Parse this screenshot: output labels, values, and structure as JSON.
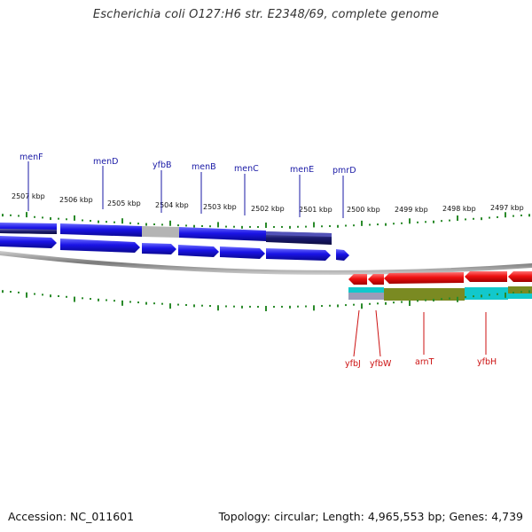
{
  "title": "Escherichia coli O127:H6 str. E2348/69, complete genome",
  "footer": {
    "accession": "Accession: NC_011601",
    "summary": "Topology: circular; Length: 4,965,553 bp; Genes: 4,739"
  },
  "scale_labels": [
    "2507 kbp",
    "2506 kbp",
    "2505 kbp",
    "2504 kbp",
    "2503 kbp",
    "2502 kbp",
    "2501 kbp",
    "2500 kbp",
    "2499 kbp",
    "2498 kbp",
    "2497 kbp"
  ],
  "genes_top": [
    "menF",
    "menD",
    "yfbB",
    "menB",
    "menC",
    "menE",
    "pmrD"
  ],
  "genes_bottom": [
    "yfbJ",
    "yfbW",
    "arnT",
    "yfbH"
  ],
  "colors": {
    "forward_gene": "#1a14e6",
    "reverse_gene": "#ee1111",
    "tick": "#2a8a2a",
    "backbone": "#888888",
    "gc_navy": "#1a1a6e",
    "gc_grey": "#b0b0b0",
    "olive": "#7a8a22",
    "cyan": "#12c8cc"
  }
}
